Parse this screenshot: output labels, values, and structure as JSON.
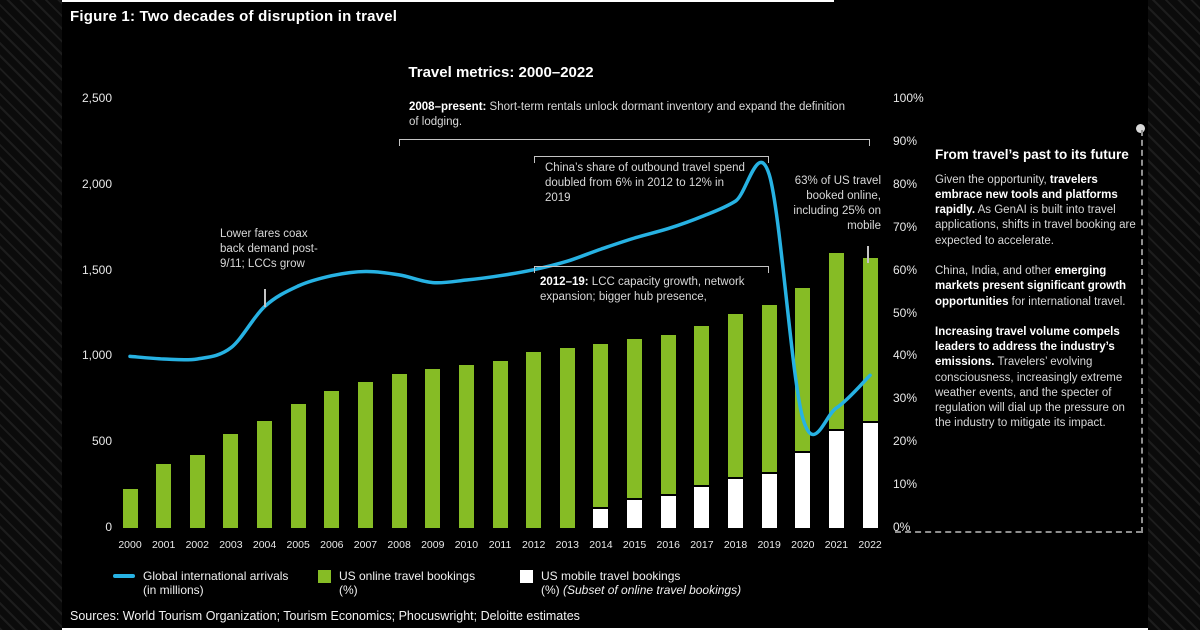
{
  "figure_title": "Figure 1: Two decades of disruption in travel",
  "sources": "Sources: World Tourism Organization; Tourism Economics; Phocuswright; Deloitte estimates",
  "colors": {
    "background": "#000000",
    "arrivals_line": "#27B2E3",
    "online_bar": "#86BC25",
    "mobile_bar": "#FFFFFF"
  },
  "chart_data": {
    "type": "bar",
    "title": "Travel metrics: 2000–2022",
    "categories": [
      "2000",
      "2001",
      "2002",
      "2003",
      "2004",
      "2005",
      "2006",
      "2007",
      "2008",
      "2009",
      "2010",
      "2011",
      "2012",
      "2013",
      "2014",
      "2015",
      "2016",
      "2017",
      "2018",
      "2019",
      "2020",
      "2021",
      "2022"
    ],
    "series": [
      {
        "id": "arrivals",
        "name": "Global international arrivals (in millions)",
        "type": "line",
        "axis": "left",
        "color": "#27B2E3",
        "values": [
          1000,
          985,
          985,
          1050,
          1290,
          1410,
          1470,
          1495,
          1475,
          1430,
          1445,
          1470,
          1505,
          1555,
          1625,
          1690,
          1745,
          1815,
          1905,
          2060,
          640,
          700,
          890
        ]
      },
      {
        "id": "online",
        "name": "US online travel bookings (%)",
        "type": "bar",
        "axis": "right",
        "color": "#86BC25",
        "values": [
          9,
          15,
          17,
          22,
          25,
          29,
          32,
          34,
          36,
          37,
          38,
          39,
          41,
          42,
          43,
          44,
          45,
          47,
          50,
          52,
          56,
          64,
          63
        ]
      },
      {
        "id": "mobile",
        "name": "US mobile travel bookings (%) (Subset of online travel bookings)",
        "type": "bar",
        "axis": "right",
        "color": "#FFFFFF",
        "values": [
          0,
          0,
          0,
          0,
          0,
          0,
          0,
          0,
          0,
          0,
          0,
          0,
          0,
          0,
          5,
          7,
          8,
          10,
          12,
          13,
          18,
          23,
          25
        ]
      }
    ],
    "left_axis": {
      "min": 0,
      "max": 2500,
      "tick_values": [
        0,
        500,
        1000,
        1500,
        2000,
        2500
      ],
      "tick_labels": [
        "0",
        "500",
        "1,000",
        "1,500",
        "2,000",
        "2,500"
      ]
    },
    "right_axis": {
      "min": 0,
      "max": 100,
      "tick_values": [
        0,
        10,
        20,
        30,
        40,
        50,
        60,
        70,
        80,
        90,
        100
      ],
      "tick_labels": [
        "0%",
        "10%",
        "20%",
        "30%",
        "40%",
        "50%",
        "60%",
        "70%",
        "80%",
        "90%",
        "100%"
      ]
    },
    "grid": false,
    "legend_position": "bottom"
  },
  "annotations": {
    "rentals": {
      "segments": [
        {
          "t": "2008–present:",
          "b": true
        },
        {
          "t": " Short-term rentals unlock dormant inventory and expand the definition of lodging."
        }
      ],
      "span": [
        2008,
        2022
      ]
    },
    "china": {
      "segments": [
        {
          "t": "China’s share of outbound travel spend doubled from 6% in 2012 to 12% in 2019"
        }
      ],
      "span": [
        2012,
        2019
      ]
    },
    "lcc": {
      "segments": [
        {
          "t": "2012–19:",
          "b": true
        },
        {
          "t": " LCC capacity growth, network expansion; bigger hub presence,"
        }
      ],
      "span": [
        2012,
        2019
      ]
    },
    "online_share": {
      "segments": [
        {
          "t": "63% of US travel booked online, including 25% on mobile"
        }
      ]
    },
    "lower_fares": {
      "segments": [
        {
          "t": "Lower fares coax back demand post-9/11; LCCs grow"
        }
      ]
    }
  },
  "legend": {
    "arrivals": {
      "line1": "Global international arrivals",
      "line2": "(in millions)"
    },
    "online": {
      "line1": "US online travel bookings",
      "line2": "(%)"
    },
    "mobile": {
      "line1": "US mobile travel bookings",
      "line2_segments": [
        {
          "t": "(%) "
        },
        {
          "t": "(Subset of online travel bookings)",
          "i": true
        }
      ]
    }
  },
  "side_panel": {
    "heading": "From travel’s past to its future",
    "paragraphs": [
      [
        {
          "t": "Given the opportunity, "
        },
        {
          "t": "travelers embrace new tools and platforms rapidly.",
          "b": true
        },
        {
          "t": " As GenAI is built into travel applications, shifts in travel booking are expected to accelerate."
        }
      ],
      [
        {
          "t": "China, India, and other "
        },
        {
          "t": "emerging markets present significant growth opportunities",
          "b": true
        },
        {
          "t": " for international travel."
        }
      ],
      [
        {
          "t": "Increasing travel volume compels leaders to address the industry’s emissions.",
          "b": true
        },
        {
          "t": " Travelers’ evolving consciousness, increasingly extreme weather events, and the specter of regulation will dial up the pressure on the industry to mitigate its impact."
        }
      ]
    ]
  }
}
